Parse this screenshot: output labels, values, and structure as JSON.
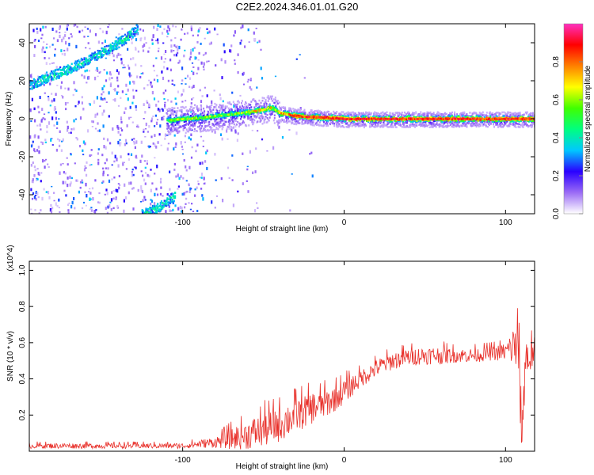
{
  "title": "C2E2.2024.346.01.01.G20",
  "colors": {
    "snr_line": "#e8302a",
    "spectrogram_faint": "#d8c8f4",
    "spectrogram_mid": "#7a3cf0",
    "colorbar_stops": [
      "#ffffff",
      "#9b6cf5",
      "#2a00ff",
      "#00c8ff",
      "#00ff80",
      "#40ff00",
      "#ffff00",
      "#ff8000",
      "#ff0000",
      "#ff30c0"
    ]
  },
  "chart_data": [
    {
      "type": "heatmap",
      "title": "C2E2.2024.346.01.01.G20",
      "xlabel": "Height of straight line (km)",
      "ylabel": "Frequency (Hz)",
      "xlim": [
        -195,
        118
      ],
      "ylim": [
        -50,
        50
      ],
      "xticks": [
        -100,
        0,
        100
      ],
      "xtick_labels": [
        "-100",
        "0",
        "100"
      ],
      "yticks": [
        -40,
        -20,
        0,
        20,
        40
      ],
      "ytick_labels": [
        "-40",
        "-20",
        "0",
        "20",
        "40"
      ],
      "colorbar": {
        "label": "Normalized spectral amplitude",
        "range": [
          0,
          1
        ],
        "ticks": [
          0.0,
          0.2,
          0.4,
          0.6,
          0.8
        ],
        "tick_labels": [
          "0.0",
          "0.2",
          "0.4",
          "0.6",
          "0.8"
        ]
      },
      "main_band": {
        "description_values": "frequency ridge (Hz) vs height (km)",
        "x": [
          -110,
          -100,
          -90,
          -80,
          -70,
          -60,
          -50,
          -45,
          -40,
          -30,
          -20,
          -10,
          0,
          10,
          20,
          40,
          60,
          80,
          100,
          110,
          118
        ],
        "y": [
          -1,
          0,
          0.5,
          1.5,
          2.5,
          3.5,
          5,
          6,
          3,
          1.5,
          1,
          0.5,
          0,
          0,
          0,
          0,
          0,
          0,
          0,
          0,
          0
        ],
        "peak_amplitude": 0.95
      },
      "diagonal_streak_upper": {
        "x": [
          -195,
          -185,
          -175,
          -165,
          -155,
          -145,
          -135,
          -128
        ],
        "y": [
          18,
          22,
          25,
          29,
          33,
          38,
          43,
          48
        ]
      },
      "diagonal_streak_lower": {
        "x": [
          -125,
          -115,
          -105
        ],
        "y": [
          -50,
          -46,
          -40
        ]
      }
    },
    {
      "type": "line",
      "xlabel": "Height of straight line (km)",
      "ylabel": "SNR (10 * v/v)",
      "y_multiplier": "(x10^4)",
      "xlim": [
        -195,
        118
      ],
      "ylim": [
        0,
        1.05
      ],
      "xticks": [
        -100,
        0,
        100
      ],
      "xtick_labels": [
        "-100",
        "0",
        "100"
      ],
      "yticks": [
        0.2,
        0.4,
        0.6,
        0.8,
        1.0
      ],
      "ytick_labels": [
        "0.2",
        "0.4",
        "0.6",
        "0.8",
        "1.0"
      ],
      "series": [
        {
          "color": "#e8302a",
          "trend_x": [
            -195,
            -150,
            -100,
            -80,
            -70,
            -60,
            -50,
            -40,
            -30,
            -20,
            -10,
            0,
            10,
            20,
            30,
            40,
            50,
            60,
            70,
            80,
            90,
            100,
            105,
            108,
            110,
            112,
            118
          ],
          "trend_y": [
            0.03,
            0.03,
            0.03,
            0.05,
            0.07,
            0.09,
            0.12,
            0.15,
            0.2,
            0.24,
            0.27,
            0.33,
            0.4,
            0.46,
            0.5,
            0.52,
            0.53,
            0.53,
            0.53,
            0.53,
            0.54,
            0.55,
            0.58,
            0.65,
            0.03,
            0.5,
            0.55
          ],
          "noise_amplitude": [
            0.015,
            0.015,
            0.015,
            0.03,
            0.06,
            0.08,
            0.1,
            0.1,
            0.1,
            0.09,
            0.08,
            0.07,
            0.05,
            0.05,
            0.05,
            0.05,
            0.05,
            0.05,
            0.04,
            0.04,
            0.04,
            0.05,
            0.12,
            0.3,
            0.05,
            0.2,
            0.05
          ]
        }
      ]
    }
  ]
}
